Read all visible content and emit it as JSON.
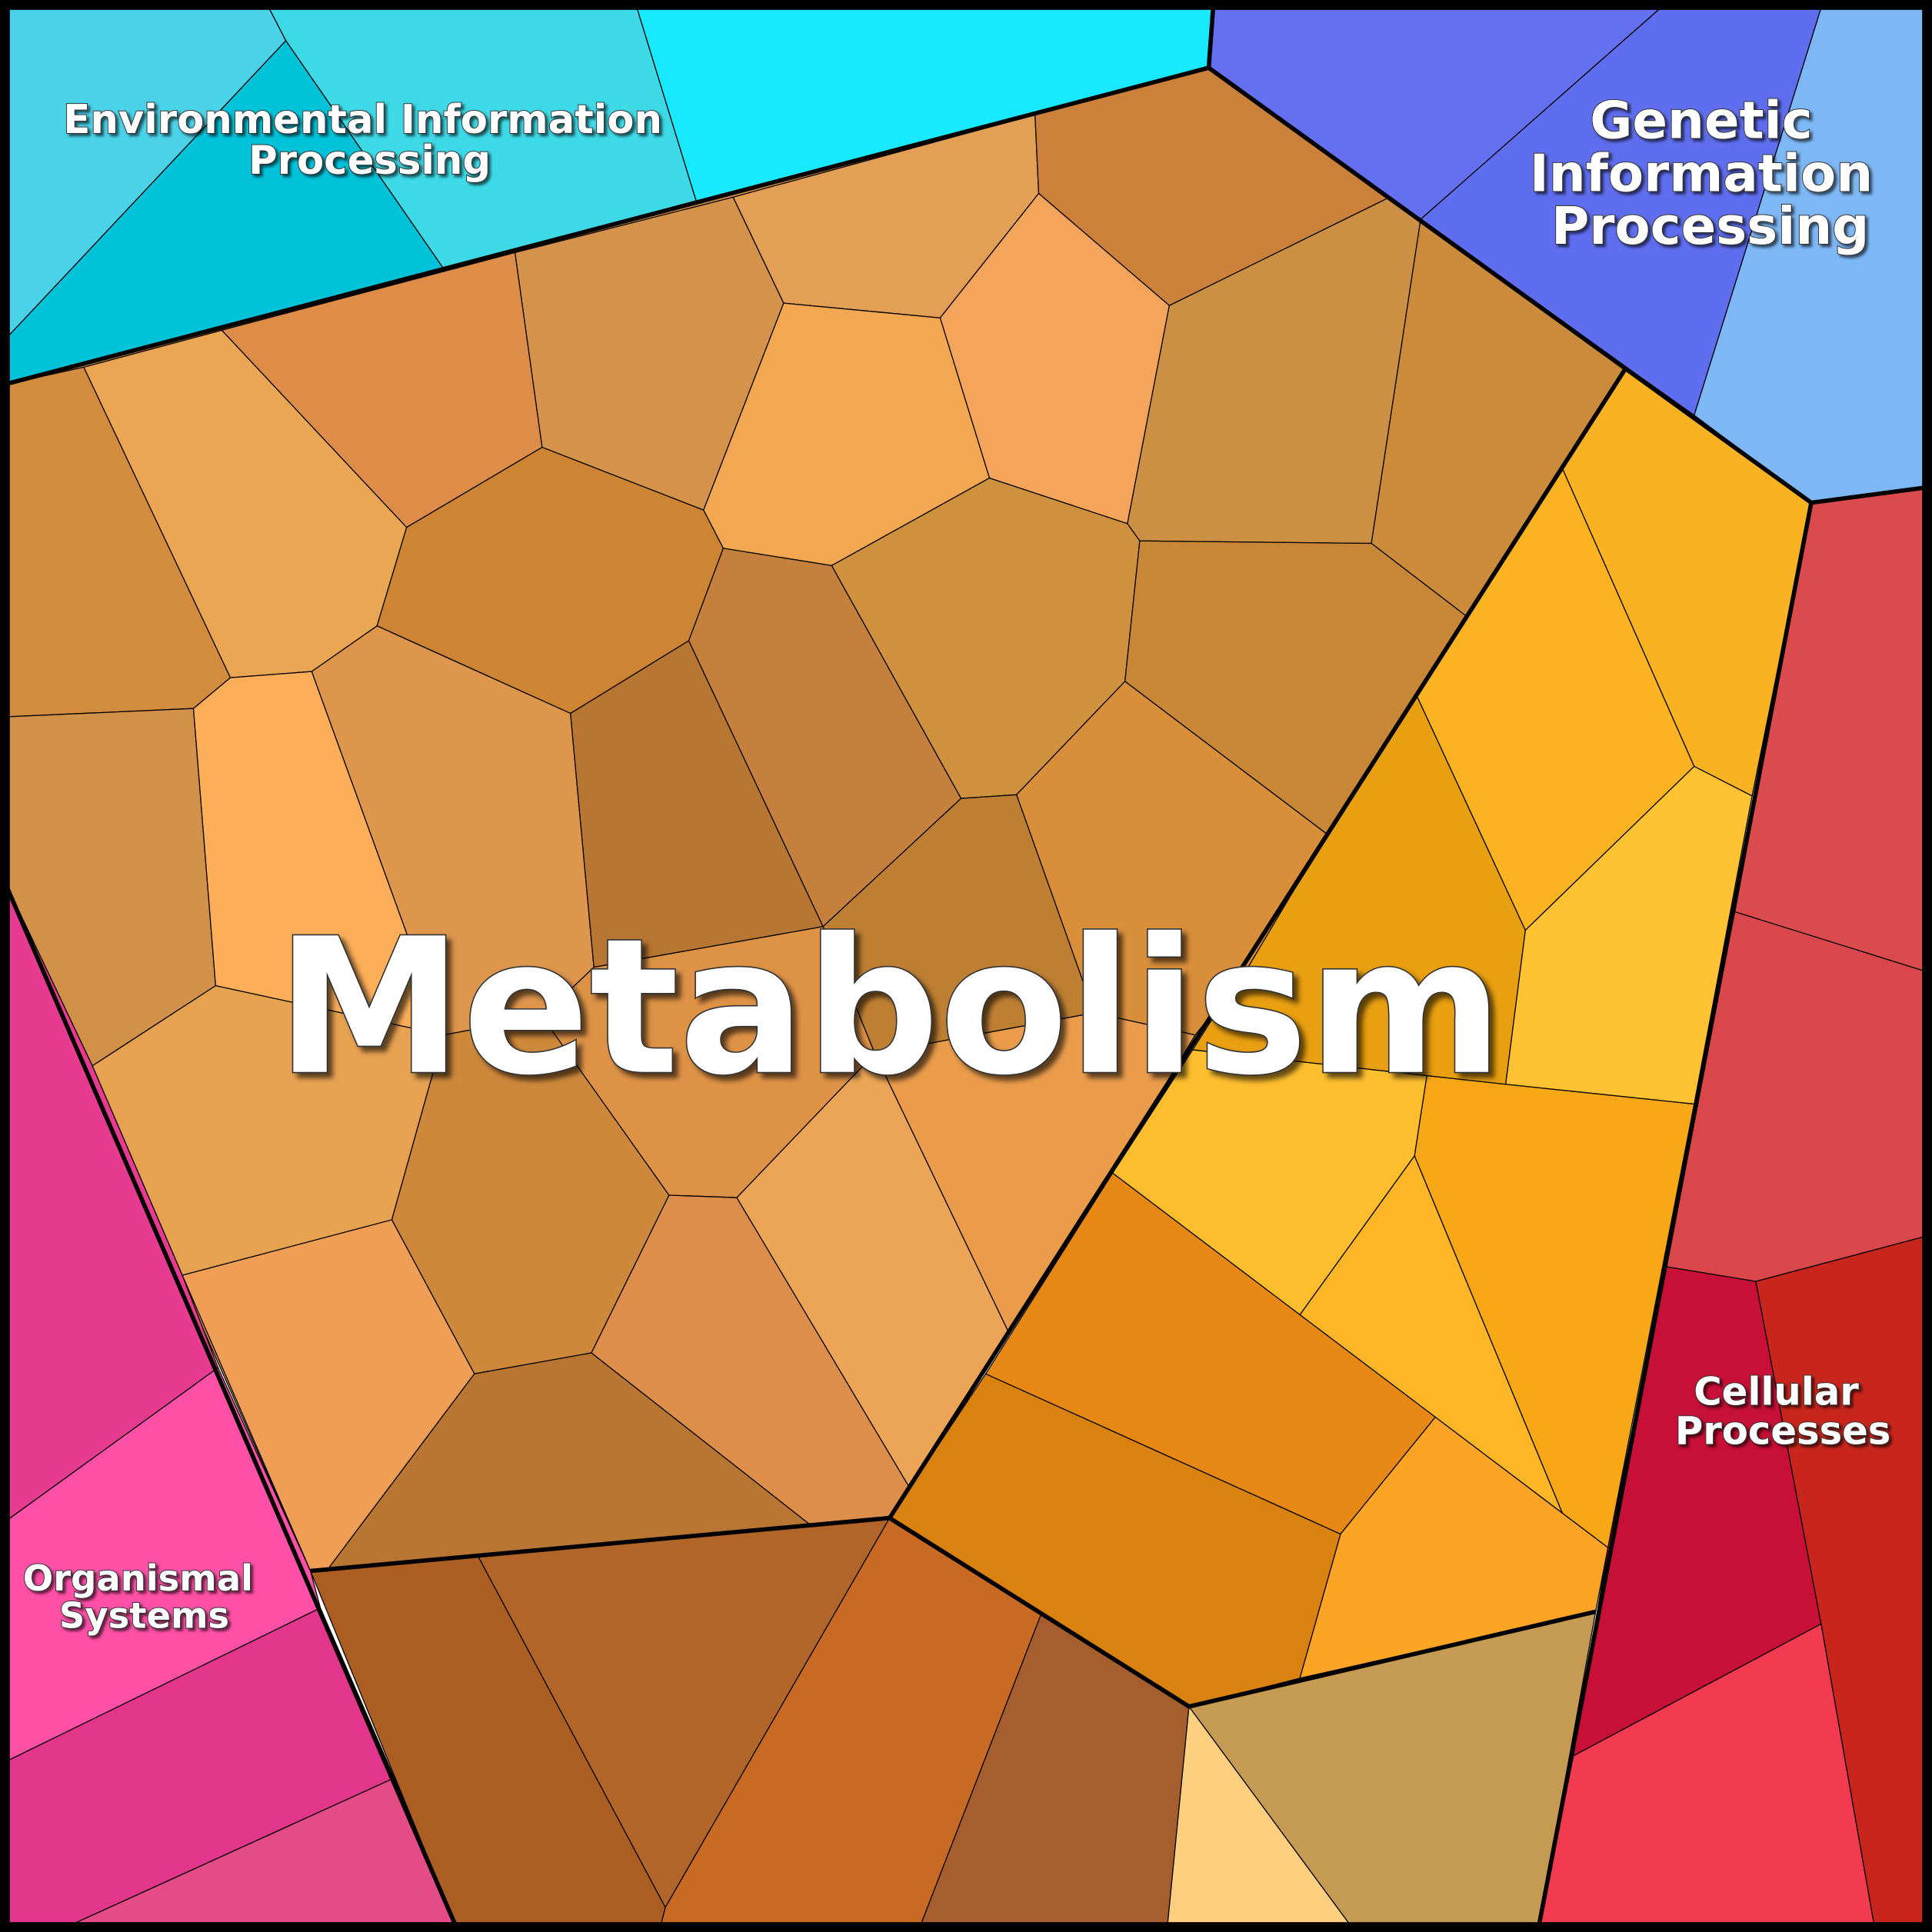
{
  "regions": [
    {
      "name_lines": [
        "Metabolism"
      ]
    },
    {
      "name_lines": [
        "Environmental Information",
        "Processing"
      ]
    },
    {
      "name_lines": [
        "Genetic",
        "Information",
        "Processing"
      ]
    },
    {
      "name_lines": [
        "Cellular",
        "Processes"
      ]
    },
    {
      "name_lines": [
        "Organismal",
        "Systems"
      ]
    }
  ]
}
